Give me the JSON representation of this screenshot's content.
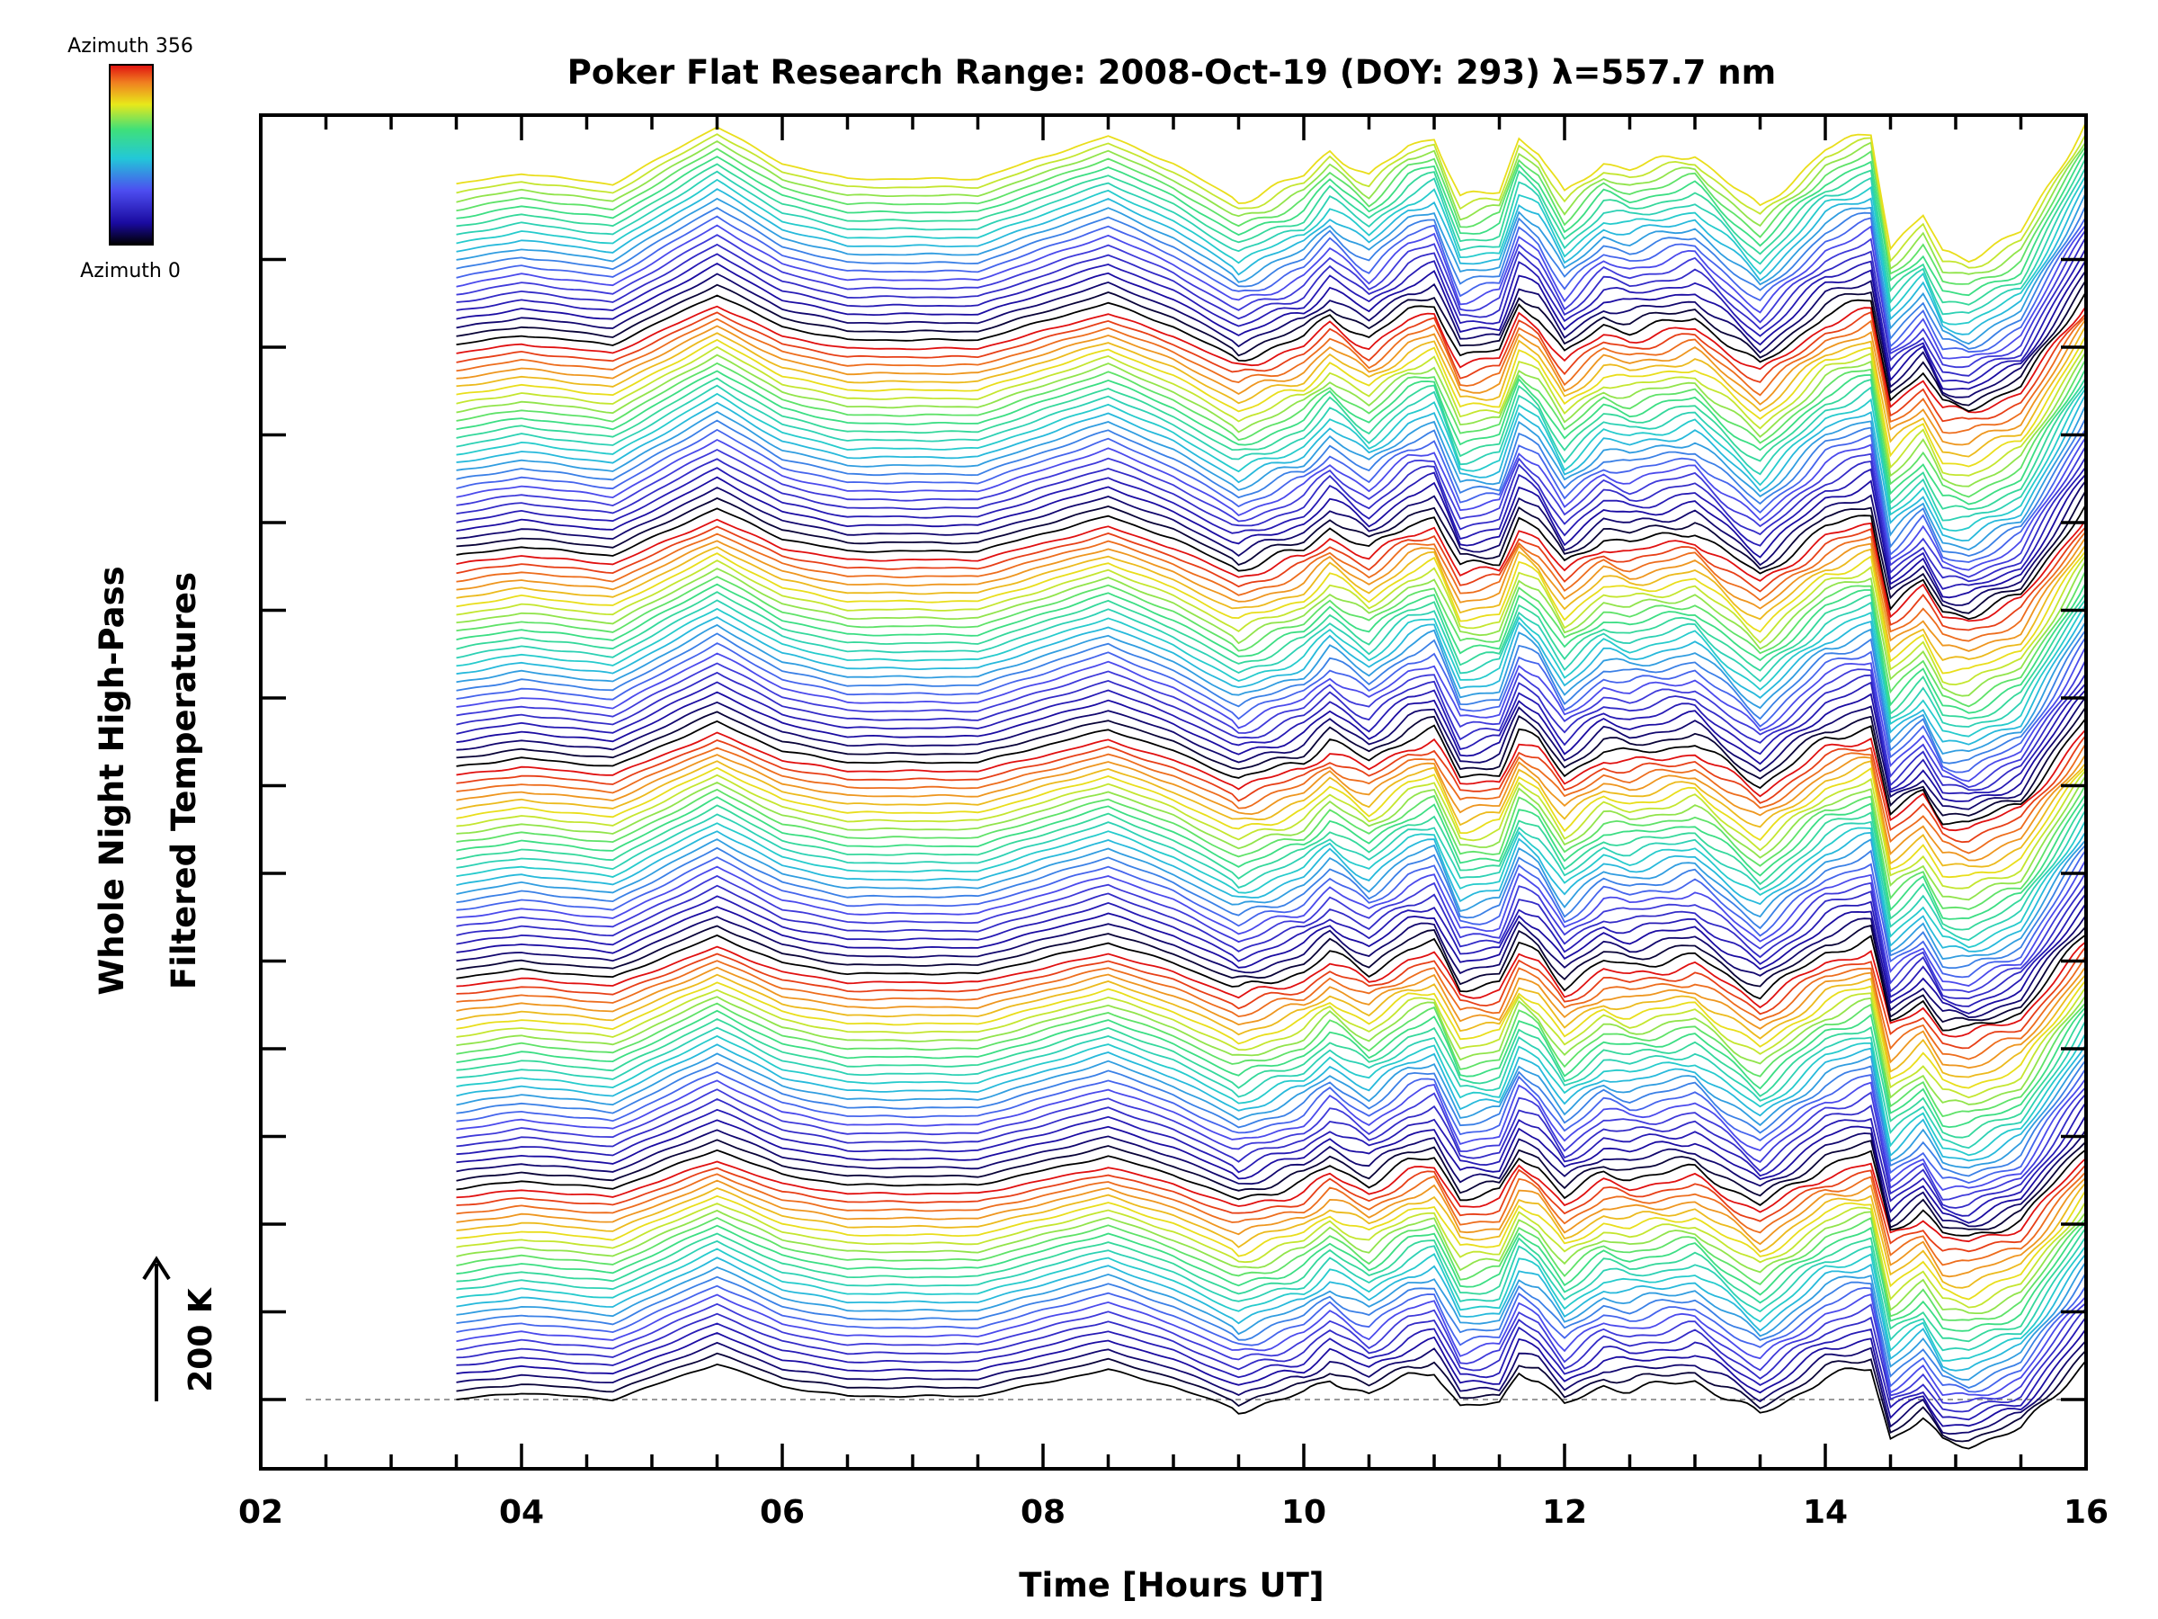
{
  "chart_data": {
    "type": "line",
    "title": "Poker Flat Research Range: 2008-Oct-19 (DOY: 293) λ=557.7 nm",
    "xlabel": "Time [Hours UT]",
    "ylabel_line1": "Whole Night High-Pass",
    "ylabel_line2": "Filtered Temperatures",
    "xlim": [
      2,
      16
    ],
    "x_ticks": [
      "02",
      "04",
      "06",
      "08",
      "10",
      "12",
      "14",
      "16"
    ],
    "scale_bar_label": "200 K",
    "colorbar": {
      "top_label": "Azimuth 356",
      "bottom_label": "Azimuth 0"
    },
    "series_count": 145,
    "series_offset_units": 1,
    "t_start": 3.5,
    "t_end": 16.0,
    "base_profile": [
      [
        3.5,
        0
      ],
      [
        4.0,
        0.8
      ],
      [
        4.7,
        0
      ],
      [
        5.5,
        4.2
      ],
      [
        6.0,
        1.5
      ],
      [
        6.5,
        0.4
      ],
      [
        7.5,
        0.4
      ],
      [
        8.5,
        3.5
      ],
      [
        9.0,
        1.5
      ],
      [
        9.5,
        -1.2
      ],
      [
        10.0,
        0.6
      ],
      [
        10.2,
        2.5
      ],
      [
        10.5,
        0.5
      ],
      [
        10.8,
        2.8
      ],
      [
        11.0,
        3.5
      ],
      [
        11.2,
        -1.0
      ],
      [
        11.5,
        -0.5
      ],
      [
        11.65,
        3.4
      ],
      [
        11.8,
        2.4
      ],
      [
        12.0,
        -0.8
      ],
      [
        12.3,
        1.6
      ],
      [
        12.5,
        1.2
      ],
      [
        13.0,
        2.2
      ],
      [
        13.5,
        -1.8
      ],
      [
        14.0,
        2.5
      ],
      [
        14.35,
        3.8
      ],
      [
        14.5,
        -4.5
      ],
      [
        14.65,
        -3.2
      ],
      [
        14.75,
        -2.3
      ],
      [
        14.9,
        -5.0
      ],
      [
        15.1,
        -5.3
      ],
      [
        15.5,
        -3.5
      ],
      [
        16.0,
        4.5
      ]
    ],
    "color_scale": [
      "#000000",
      "#1a0aa0",
      "#4d4df0",
      "#22c8d8",
      "#3fe07a",
      "#e8e81a",
      "#f08020",
      "#e01010"
    ]
  }
}
